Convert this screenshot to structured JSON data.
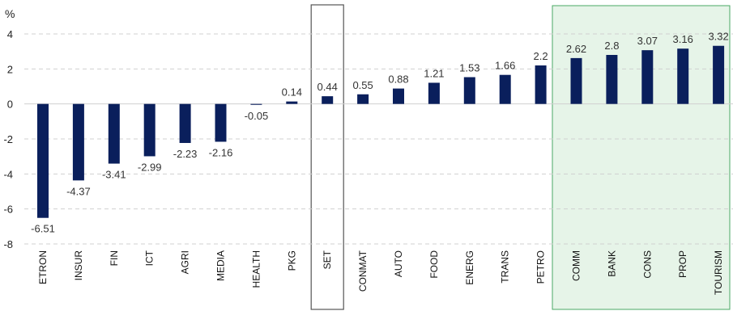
{
  "chart_data": {
    "type": "bar",
    "ylabel": "%",
    "ylim": [
      -8,
      4
    ],
    "yticks": [
      4,
      2,
      0,
      -2,
      -4,
      -6,
      -8
    ],
    "grid": true,
    "categories": [
      "ETRON",
      "INSUR",
      "FIN",
      "ICT",
      "AGRI",
      "MEDIA",
      "HEALTH",
      "PKG",
      "SET",
      "CONMAT",
      "AUTO",
      "FOOD",
      "ENERG",
      "TRANS",
      "PETRO",
      "COMM",
      "BANK",
      "CONS",
      "PROP",
      "TOURISM"
    ],
    "values": [
      -6.51,
      -4.37,
      -3.41,
      -2.99,
      -2.23,
      -2.16,
      -0.05,
      0.14,
      0.44,
      0.55,
      0.88,
      1.21,
      1.53,
      1.66,
      2.2,
      2.62,
      2.8,
      3.07,
      3.16,
      3.32
    ],
    "value_labels": [
      "-6.51",
      "-4.37",
      "-3.41",
      "-2.99",
      "-2.23",
      "-2.16",
      "-0.05",
      "0.14",
      "0.44",
      "0.55",
      "0.88",
      "1.21",
      "1.53",
      "1.66",
      "2.2",
      "2.62",
      "2.8",
      "3.07",
      "3.16",
      "3.32"
    ],
    "highlighted_category": "SET",
    "highlighted_group": [
      "COMM",
      "BANK",
      "CONS",
      "PROP",
      "TOURISM"
    ],
    "colors": {
      "bar": "#0a1f5c",
      "grid": "#d0d0d0",
      "highlight_fill": "#e6f4e8",
      "highlight_border": "#4aa864",
      "set_box_border": "#555555"
    }
  }
}
